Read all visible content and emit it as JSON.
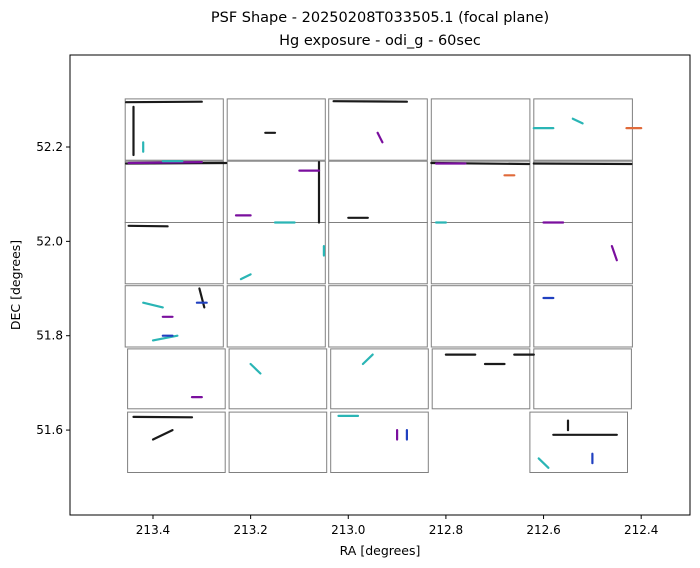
{
  "chart_data": {
    "type": "scatter",
    "title_line1": "PSF Shape - 20250208T033505.1 (focal plane)",
    "title_line2": "Hg exposure - odi_g - 60sec",
    "xlabel": "RA [degrees]",
    "ylabel": "DEC [degrees]",
    "xlim": [
      213.57,
      212.3
    ],
    "ylim": [
      51.42,
      52.395
    ],
    "x_ticks": [
      {
        "value": 213.4,
        "label": "213.4"
      },
      {
        "value": 213.2,
        "label": "213.2"
      },
      {
        "value": 213.0,
        "label": "213.0"
      },
      {
        "value": 212.8,
        "label": "212.8"
      },
      {
        "value": 212.6,
        "label": "212.6"
      },
      {
        "value": 212.4,
        "label": "212.4"
      }
    ],
    "y_ticks": [
      {
        "value": 51.6,
        "label": "51.6"
      },
      {
        "value": 51.8,
        "label": "51.8"
      },
      {
        "value": 52.0,
        "label": "52.0"
      },
      {
        "value": 52.2,
        "label": "52.2"
      }
    ],
    "grid": false,
    "cell_outline_color": "#808080",
    "colors": {
      "black": "#1a1a1a",
      "purple": "#7a0f9e",
      "teal": "#2ab5b5",
      "blue": "#2040c0",
      "orange": "#e06a3a"
    },
    "cells": [
      {
        "ra0": 213.457,
        "ra1": 213.256,
        "dec0": 52.172,
        "dec1": 52.302
      },
      {
        "ra0": 213.248,
        "ra1": 213.047,
        "dec0": 52.172,
        "dec1": 52.302
      },
      {
        "ra0": 213.04,
        "ra1": 212.838,
        "dec0": 52.172,
        "dec1": 52.302
      },
      {
        "ra0": 212.83,
        "ra1": 212.628,
        "dec0": 52.172,
        "dec1": 52.302
      },
      {
        "ra0": 212.62,
        "ra1": 212.418,
        "dec0": 52.172,
        "dec1": 52.302
      },
      {
        "ra0": 213.457,
        "ra1": 213.256,
        "dec0": 52.04,
        "dec1": 52.17
      },
      {
        "ra0": 213.248,
        "ra1": 213.047,
        "dec0": 52.04,
        "dec1": 52.17
      },
      {
        "ra0": 213.04,
        "ra1": 212.838,
        "dec0": 52.04,
        "dec1": 52.17
      },
      {
        "ra0": 212.83,
        "ra1": 212.628,
        "dec0": 52.04,
        "dec1": 52.17
      },
      {
        "ra0": 212.62,
        "ra1": 212.418,
        "dec0": 52.04,
        "dec1": 52.17
      },
      {
        "ra0": 213.457,
        "ra1": 213.256,
        "dec0": 51.91,
        "dec1": 52.04
      },
      {
        "ra0": 213.248,
        "ra1": 213.047,
        "dec0": 51.91,
        "dec1": 52.04
      },
      {
        "ra0": 213.04,
        "ra1": 212.838,
        "dec0": 51.91,
        "dec1": 52.04
      },
      {
        "ra0": 212.83,
        "ra1": 212.628,
        "dec0": 51.91,
        "dec1": 52.04
      },
      {
        "ra0": 212.62,
        "ra1": 212.418,
        "dec0": 51.91,
        "dec1": 52.04
      },
      {
        "ra0": 213.457,
        "ra1": 213.256,
        "dec0": 51.776,
        "dec1": 51.906
      },
      {
        "ra0": 213.248,
        "ra1": 213.047,
        "dec0": 51.776,
        "dec1": 51.906
      },
      {
        "ra0": 213.04,
        "ra1": 212.838,
        "dec0": 51.776,
        "dec1": 51.906
      },
      {
        "ra0": 212.83,
        "ra1": 212.628,
        "dec0": 51.776,
        "dec1": 51.906
      },
      {
        "ra0": 212.62,
        "ra1": 212.418,
        "dec0": 51.776,
        "dec1": 51.906
      },
      {
        "ra0": 213.452,
        "ra1": 213.252,
        "dec0": 51.645,
        "dec1": 51.772
      },
      {
        "ra0": 213.244,
        "ra1": 213.044,
        "dec0": 51.645,
        "dec1": 51.772
      },
      {
        "ra0": 213.036,
        "ra1": 212.836,
        "dec0": 51.645,
        "dec1": 51.772
      },
      {
        "ra0": 212.828,
        "ra1": 212.628,
        "dec0": 51.645,
        "dec1": 51.772
      },
      {
        "ra0": 212.62,
        "ra1": 212.42,
        "dec0": 51.645,
        "dec1": 51.772
      },
      {
        "ra0": 213.452,
        "ra1": 213.252,
        "dec0": 51.51,
        "dec1": 51.638
      },
      {
        "ra0": 213.244,
        "ra1": 213.044,
        "dec0": 51.51,
        "dec1": 51.638
      },
      {
        "ra0": 213.036,
        "ra1": 212.836,
        "dec0": 51.51,
        "dec1": 51.638
      },
      {
        "ra0": 212.628,
        "ra1": 212.428,
        "dec0": 51.51,
        "dec1": 51.638
      }
    ],
    "series": [
      {
        "color": "black",
        "segments": [
          [
            213.455,
            52.295,
            213.3,
            52.296
          ],
          [
            213.455,
            52.165,
            213.25,
            52.166
          ],
          [
            213.44,
            52.183,
            213.44,
            52.285
          ],
          [
            213.06,
            52.04,
            213.06,
            52.168
          ],
          [
            213.03,
            52.297,
            212.88,
            52.296
          ],
          [
            212.83,
            52.166,
            212.63,
            52.164
          ],
          [
            212.62,
            52.165,
            212.42,
            52.164
          ],
          [
            213.45,
            52.033,
            213.37,
            52.032
          ],
          [
            213.44,
            51.628,
            213.32,
            51.627
          ],
          [
            213.305,
            51.9,
            213.295,
            51.86
          ],
          [
            212.66,
            51.76,
            212.62,
            51.76
          ],
          [
            212.58,
            51.59,
            212.45,
            51.59
          ],
          [
            213.0,
            52.05,
            212.96,
            52.05
          ],
          [
            212.8,
            51.76,
            212.74,
            51.76
          ],
          [
            212.72,
            51.74,
            212.68,
            51.74
          ],
          [
            213.4,
            51.58,
            213.36,
            51.6
          ],
          [
            213.17,
            52.23,
            213.15,
            52.23
          ],
          [
            212.55,
            51.62,
            212.55,
            51.6
          ]
        ]
      },
      {
        "color": "purple",
        "segments": [
          [
            213.45,
            52.166,
            213.3,
            52.168
          ],
          [
            213.23,
            52.055,
            213.2,
            52.055
          ],
          [
            213.1,
            52.15,
            213.06,
            52.15
          ],
          [
            212.82,
            52.165,
            212.76,
            52.165
          ],
          [
            213.32,
            51.67,
            213.3,
            51.67
          ],
          [
            212.9,
            51.6,
            212.9,
            51.58
          ],
          [
            212.46,
            51.99,
            212.45,
            51.96
          ],
          [
            212.94,
            52.23,
            212.93,
            52.21
          ],
          [
            212.6,
            52.04,
            212.56,
            52.04
          ],
          [
            213.38,
            51.84,
            213.36,
            51.84
          ]
        ]
      },
      {
        "color": "teal",
        "segments": [
          [
            213.38,
            52.17,
            213.34,
            52.17
          ],
          [
            213.15,
            52.04,
            213.11,
            52.04
          ],
          [
            213.4,
            51.79,
            213.35,
            51.8
          ],
          [
            213.42,
            51.87,
            213.38,
            51.86
          ],
          [
            212.54,
            52.26,
            212.52,
            52.25
          ],
          [
            212.59,
            51.52,
            212.61,
            51.54
          ],
          [
            212.95,
            51.76,
            212.97,
            51.74
          ],
          [
            213.18,
            51.72,
            213.2,
            51.74
          ],
          [
            212.98,
            51.63,
            213.02,
            51.63
          ],
          [
            212.82,
            52.04,
            212.8,
            52.04
          ],
          [
            213.42,
            52.21,
            213.42,
            52.19
          ],
          [
            212.62,
            52.24,
            212.58,
            52.24
          ],
          [
            213.05,
            51.99,
            213.05,
            51.97
          ],
          [
            213.22,
            51.92,
            213.2,
            51.93
          ]
        ]
      },
      {
        "color": "blue",
        "segments": [
          [
            213.31,
            51.87,
            213.29,
            51.87
          ],
          [
            212.88,
            51.6,
            212.88,
            51.58
          ],
          [
            212.5,
            51.55,
            212.5,
            51.53
          ],
          [
            213.38,
            51.8,
            213.36,
            51.8
          ],
          [
            212.6,
            51.88,
            212.58,
            51.88
          ]
        ]
      },
      {
        "color": "orange",
        "segments": [
          [
            212.43,
            52.24,
            212.4,
            52.24
          ],
          [
            212.68,
            52.14,
            212.66,
            52.14
          ]
        ]
      }
    ]
  }
}
